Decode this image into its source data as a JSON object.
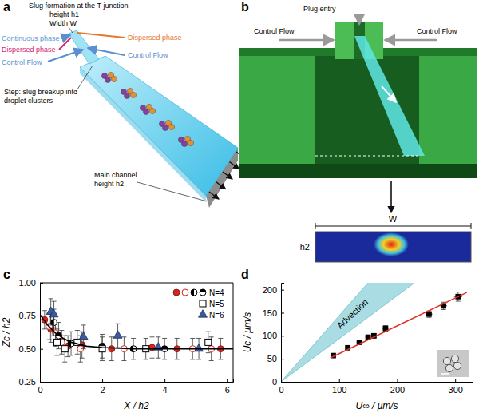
{
  "panel_labels": [
    "a",
    "b",
    "c",
    "d"
  ],
  "diagram_a": {
    "slug_formation": "Slug formation at the T-junction",
    "slug_height": "height h1",
    "slug_width": "Width W",
    "continuous_phase": "Continuous phase",
    "dispersed_phase_left": "Dispersed phase",
    "dispersed_phase_right": "Dispersed phase",
    "control_flow_left": "Control Flow",
    "control_flow_right": "Control Flow",
    "step": [
      "Step: slug breakup into",
      "droplet clusters"
    ],
    "main_channel": "Main channel",
    "main_channel_height": "height h2"
  },
  "diagram_b": {
    "plug_entry": "Plug entry",
    "control_flow_left": "Control Flow",
    "control_flow_right": "Control Flow",
    "inset_width": "W",
    "inset_height": "h2"
  },
  "chart_data": [
    {
      "type": "scatter",
      "x_label": "X / h2",
      "y_label": "Zc / h2",
      "xlim": [
        0,
        6.2
      ],
      "ylim": [
        0.25,
        1.0
      ],
      "xticks": [
        0,
        2,
        4,
        6
      ],
      "yticks": [
        0.25,
        {
          "value": 0.5,
          "label": "0.50"
        },
        {
          "value": 0.75,
          "label": "0.75"
        },
        {
          "value": 1.0,
          "label": "1.00"
        }
      ],
      "legend": "upper right",
      "series": [
        {
          "name": "N=4",
          "color": "#d7261e",
          "marker": "circle",
          "x": [
            0.15,
            0.35,
            0.9,
            1.35,
            2.3,
            3.6,
            4.4,
            5.8
          ],
          "values": [
            0.72,
            0.65,
            0.52,
            0.53,
            0.5,
            0.51,
            0.5,
            0.5
          ],
          "errors": [
            0.07,
            0.1,
            0.08,
            0.1,
            0.09,
            0.08,
            0.08,
            0.08
          ]
        },
        {
          "color": "#d7261e",
          "marker": "open-circle",
          "x": [
            0.3,
            0.5,
            0.7,
            1.3,
            2.7,
            4.9,
            5.5
          ],
          "values": [
            0.67,
            0.62,
            0.55,
            0.5,
            0.5,
            0.5,
            0.5
          ],
          "errors": [
            0.1,
            0.1,
            0.09,
            0.1,
            0.09,
            0.08,
            0.09
          ]
        },
        {
          "color": "#000000",
          "marker": "half-circle",
          "x": [
            0.45,
            1.0,
            3.0
          ],
          "values": [
            0.7,
            0.54,
            0.5
          ],
          "errors": [
            0.1,
            0.09,
            0.08
          ]
        },
        {
          "color": "#000000",
          "marker": "half-circle-top",
          "x": [
            0.6,
            2.0,
            4.0
          ],
          "values": [
            0.6,
            0.52,
            0.5
          ],
          "errors": [
            0.1,
            0.09,
            0.08
          ]
        },
        {
          "name": "N=5",
          "color": "#000000",
          "marker": "open-square",
          "x": [
            0.55,
            0.8,
            1.2,
            2.0,
            3.4,
            5.4
          ],
          "values": [
            0.55,
            0.5,
            0.55,
            0.5,
            0.5,
            0.55
          ],
          "errors": [
            0.1,
            0.1,
            0.09,
            0.09,
            0.08,
            0.08
          ]
        },
        {
          "name": "N=6",
          "color": "#3a5ba0",
          "marker": "triangle",
          "x": [
            0.35,
            0.45,
            1.4,
            2.5,
            3.8,
            5.1
          ],
          "values": [
            0.78,
            0.76,
            0.59,
            0.6,
            0.51,
            0.5
          ],
          "errors": [
            0.1,
            0.1,
            0.09,
            0.09,
            0.08,
            0.08
          ]
        },
        {
          "type": "line",
          "color": "#000000",
          "x": [
            0,
            0.25,
            0.5,
            0.75,
            1,
            1.5,
            2,
            3,
            4,
            5,
            6.2
          ],
          "values": [
            0.76,
            0.68,
            0.62,
            0.58,
            0.55,
            0.52,
            0.51,
            0.5,
            0.5,
            0.5,
            0.5
          ]
        }
      ]
    },
    {
      "type": "scatter",
      "x_label": "U∞ / μm/s",
      "y_label": "Uc / μm/s",
      "xlim": [
        0,
        330
      ],
      "ylim": [
        0,
        215
      ],
      "xticks": [
        0,
        100,
        200,
        300
      ],
      "yticks": [
        0,
        50,
        100,
        150,
        200
      ],
      "band": {
        "name": "Advection",
        "color": "#a9dde3",
        "x": [
          0,
          230
        ],
        "lower": [
          0,
          215
        ],
        "upper": [
          0,
          330
        ]
      },
      "series": [
        {
          "color": "#000000",
          "marker": "square",
          "x": [
            90,
            115,
            135,
            150,
            160,
            180,
            255,
            280,
            305
          ],
          "values": [
            57,
            74,
            86,
            97,
            100,
            116,
            147,
            165,
            185
          ],
          "errors": [
            4,
            4,
            4,
            4,
            5,
            6,
            7,
            8,
            10
          ],
          "x_errors": [
            5,
            5,
            5,
            5,
            5,
            6,
            6,
            6,
            7
          ]
        },
        {
          "type": "line",
          "color": "#e03020",
          "x": [
            85,
            320
          ],
          "values": [
            52,
            194
          ]
        }
      ]
    }
  ]
}
